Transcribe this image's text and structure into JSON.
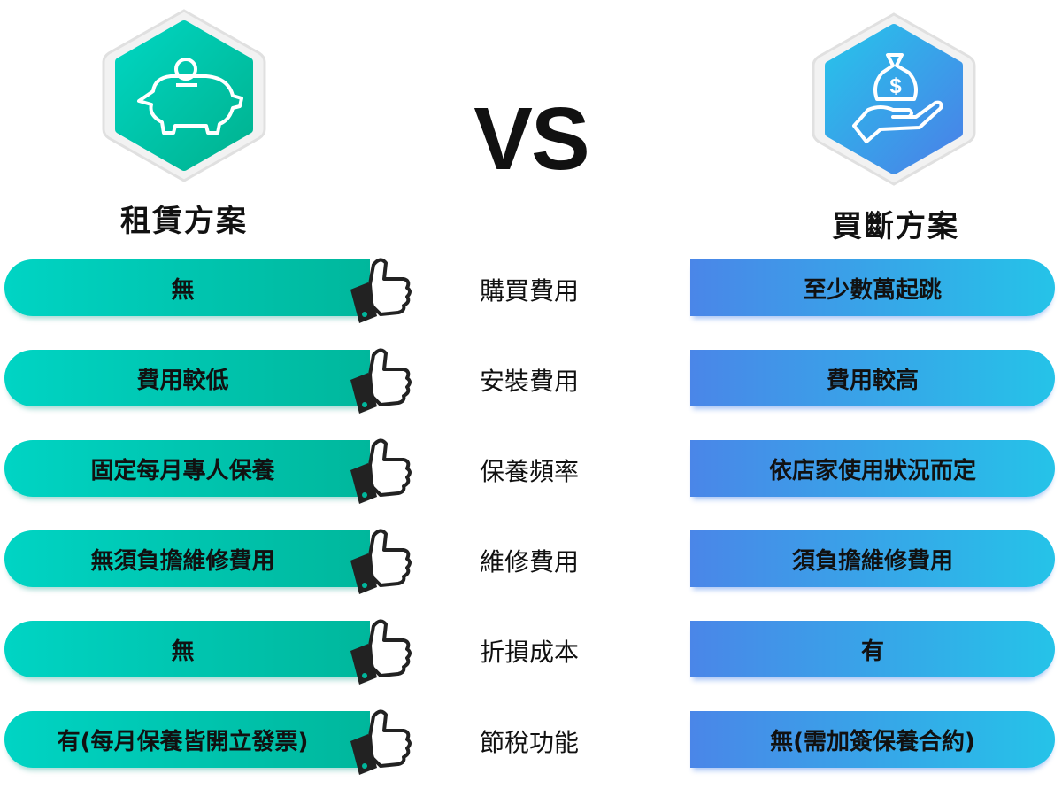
{
  "left_plan": {
    "title": "租賃方案",
    "icon": "piggy-bank-icon",
    "color": "#00c4ad"
  },
  "right_plan": {
    "title": "買斷方案",
    "icon": "money-bag-hand-icon",
    "color": "#3b8ee8"
  },
  "vs_label": "VS",
  "rows": [
    {
      "criterion": "購買費用",
      "left": "無",
      "right": "至少數萬起跳"
    },
    {
      "criterion": "安裝費用",
      "left": "費用較低",
      "right": "費用較高"
    },
    {
      "criterion": "保養頻率",
      "left": "固定每月專人保養",
      "right": "依店家使用狀況而定"
    },
    {
      "criterion": "維修費用",
      "left": "無須負擔維修費用",
      "right": "須負擔維修費用"
    },
    {
      "criterion": "折損成本",
      "left": "無",
      "right": "有"
    },
    {
      "criterion": "節稅功能",
      "left": "有(每月保養皆開立發票)",
      "right": "無(需加簽保養合約)"
    }
  ],
  "thumb_icon": "thumbs-up-icon"
}
